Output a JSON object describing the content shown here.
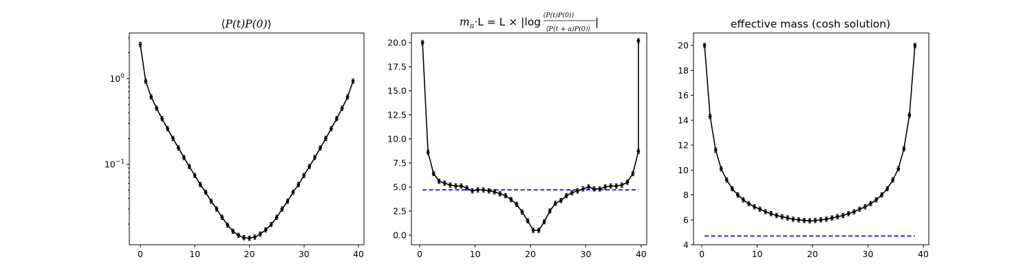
{
  "colors": {
    "series": "#000000",
    "reference": "#0000cc"
  },
  "chart_data": [
    {
      "type": "line",
      "yscale": "log",
      "title_parts": [
        "⟨",
        "P(t)P(0)",
        "⟩"
      ],
      "xlim": [
        -2,
        41
      ],
      "ylim": [
        0.0115,
        3.4
      ],
      "xticks": [
        0,
        10,
        20,
        30,
        40
      ],
      "xtick_labels": [
        "0",
        "10",
        "20",
        "30",
        "40"
      ],
      "yticks": [
        1,
        0.1
      ],
      "ytick_labels": [
        {
          "base": "10",
          "exp": "0"
        },
        {
          "base": "10",
          "exp": "−1"
        }
      ],
      "series": [
        {
          "x": [
            0,
            1,
            2,
            3,
            4,
            5,
            6,
            7,
            8,
            9,
            10,
            11,
            12,
            13,
            14,
            15,
            16,
            17,
            18,
            19,
            20,
            21,
            22,
            23,
            24,
            25,
            26,
            27,
            28,
            29,
            30,
            31,
            32,
            33,
            34,
            35,
            36,
            37,
            38,
            39
          ],
          "values": [
            2.5,
            0.93,
            0.61,
            0.45,
            0.34,
            0.26,
            0.2,
            0.155,
            0.12,
            0.094,
            0.074,
            0.058,
            0.047,
            0.037,
            0.03,
            0.024,
            0.0195,
            0.0165,
            0.0148,
            0.0139,
            0.0137,
            0.0141,
            0.0153,
            0.0172,
            0.0198,
            0.024,
            0.03,
            0.037,
            0.047,
            0.058,
            0.074,
            0.094,
            0.12,
            0.155,
            0.2,
            0.26,
            0.34,
            0.45,
            0.61,
            0.93
          ]
        }
      ]
    },
    {
      "type": "line",
      "yscale": "linear",
      "title_parts": [
        "m",
        "π",
        "·L = L × |log",
        "⟨P(t)P(0)⟩",
        "⟨P(t + a)P(0)⟩",
        "|"
      ],
      "xlim": [
        -1.5,
        41
      ],
      "ylim": [
        -1.0,
        21.0
      ],
      "xticks": [
        0,
        10,
        20,
        30,
        40
      ],
      "xtick_labels": [
        "0",
        "10",
        "20",
        "30",
        "40"
      ],
      "yticks": [
        0,
        2.5,
        5,
        7.5,
        10,
        12.5,
        15,
        17.5,
        20
      ],
      "ytick_labels": [
        "0.0",
        "2.5",
        "5.0",
        "7.5",
        "10.0",
        "12.5",
        "15.0",
        "17.5",
        "20.0"
      ],
      "reference_line": {
        "y": 4.7,
        "x_range": [
          0.5,
          39.5
        ]
      },
      "series": [
        {
          "x": [
            0.5,
            1.5,
            2.5,
            3.5,
            4.5,
            5.5,
            6.5,
            7.5,
            8.5,
            9.5,
            10.5,
            11.5,
            12.5,
            13.5,
            14.5,
            15.5,
            16.5,
            17.5,
            18.5,
            19.5,
            20.5,
            21.5,
            22.5,
            23.5,
            24.5,
            25.5,
            26.5,
            27.5,
            28.5,
            29.5,
            30.5,
            31.5,
            32.5,
            33.5,
            34.5,
            35.5,
            36.5,
            37.5,
            38.5,
            39.5
          ],
          "values": [
            20.0,
            8.6,
            6.4,
            5.6,
            5.4,
            5.2,
            5.1,
            5.1,
            4.9,
            4.6,
            4.7,
            4.7,
            4.6,
            4.5,
            4.3,
            4.1,
            3.7,
            3.2,
            2.4,
            1.5,
            0.5,
            0.5,
            1.4,
            2.5,
            3.3,
            3.6,
            4.1,
            4.4,
            4.6,
            4.8,
            5.0,
            4.8,
            4.8,
            5.0,
            5.1,
            5.1,
            5.2,
            5.5,
            6.4,
            8.7
          ]
        }
      ],
      "tail_point": {
        "x": 39.5,
        "y": 20.2
      }
    },
    {
      "type": "line",
      "yscale": "linear",
      "title": "effective mass (cosh solution)",
      "xlim": [
        -1.5,
        41
      ],
      "ylim": [
        4,
        21
      ],
      "xticks": [
        0,
        10,
        20,
        30,
        40
      ],
      "xtick_labels": [
        "0",
        "10",
        "20",
        "30",
        "40"
      ],
      "yticks": [
        4,
        6,
        8,
        10,
        12,
        14,
        16,
        18,
        20
      ],
      "ytick_labels": [
        "4",
        "6",
        "8",
        "10",
        "12",
        "14",
        "16",
        "18",
        "20"
      ],
      "reference_line": {
        "y": 4.7,
        "x_range": [
          0.5,
          38.5
        ]
      },
      "series": [
        {
          "x": [
            0.5,
            1.5,
            2.5,
            3.5,
            4.5,
            5.5,
            6.5,
            7.5,
            8.5,
            9.5,
            10.5,
            11.5,
            12.5,
            13.5,
            14.5,
            15.5,
            16.5,
            17.5,
            18.5,
            19.5,
            20.5,
            21.5,
            22.5,
            23.5,
            24.5,
            25.5,
            26.5,
            27.5,
            28.5,
            29.5,
            30.5,
            31.5,
            32.5,
            33.5,
            34.5,
            35.5,
            36.5,
            37.5,
            38.5
          ],
          "values": [
            20.0,
            14.3,
            11.6,
            10.1,
            9.2,
            8.5,
            8.0,
            7.6,
            7.3,
            7.05,
            6.85,
            6.65,
            6.5,
            6.35,
            6.25,
            6.15,
            6.05,
            6.0,
            5.95,
            5.93,
            5.95,
            6.0,
            6.05,
            6.15,
            6.25,
            6.35,
            6.5,
            6.65,
            6.85,
            7.05,
            7.3,
            7.6,
            8.0,
            8.5,
            9.2,
            10.1,
            11.7,
            14.4,
            20.0
          ]
        }
      ]
    }
  ]
}
